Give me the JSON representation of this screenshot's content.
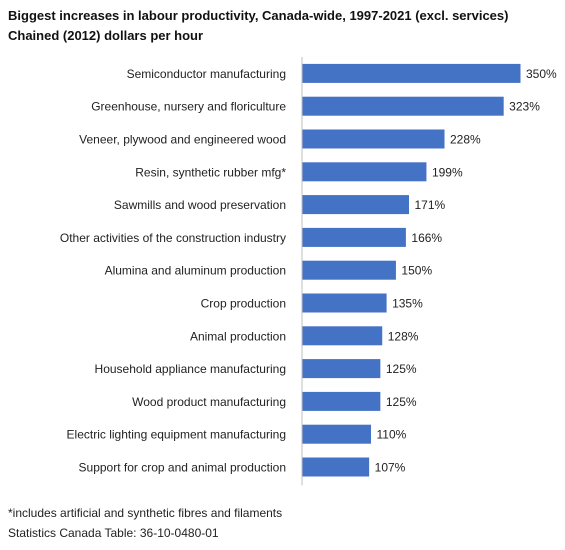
{
  "title": "Biggest increases in labour productivity, Canada-wide, 1997-2021 (excl. services)",
  "subtitle": "Chained (2012) dollars per hour",
  "footnote": "*includes artificial and synthetic fibres and filaments",
  "source": "Statistics Canada Table: 36-10-0480-01",
  "chart_data": {
    "type": "bar",
    "orientation": "horizontal",
    "title": "Biggest increases in labour productivity, Canada-wide, 1997-2021 (excl. services)",
    "subtitle": "Chained (2012) dollars per hour",
    "categories": [
      "Semiconductor  manufacturing",
      "Greenhouse, nursery and floriculture",
      "Veneer, plywood and engineered wood",
      "Resin, synthetic rubber mfg*",
      "Sawmills and wood preservation",
      "Other activities of the construction industry",
      "Alumina and aluminum production",
      "Crop production",
      "Animal production",
      "Household appliance manufacturing",
      "Wood product manufacturing",
      "Electric lighting equipment manufacturing",
      "Support for crop and animal production"
    ],
    "values": [
      350,
      323,
      228,
      199,
      171,
      166,
      150,
      135,
      128,
      125,
      125,
      110,
      107
    ],
    "value_labels": [
      "350%",
      "323%",
      "228%",
      "199%",
      "171%",
      "166%",
      "150%",
      "135%",
      "128%",
      "125%",
      "125%",
      "110%",
      "107%"
    ],
    "unit": "%",
    "xlim": [
      0,
      350
    ],
    "grid": false,
    "legend": "none",
    "bar_color": "#4472C4"
  }
}
